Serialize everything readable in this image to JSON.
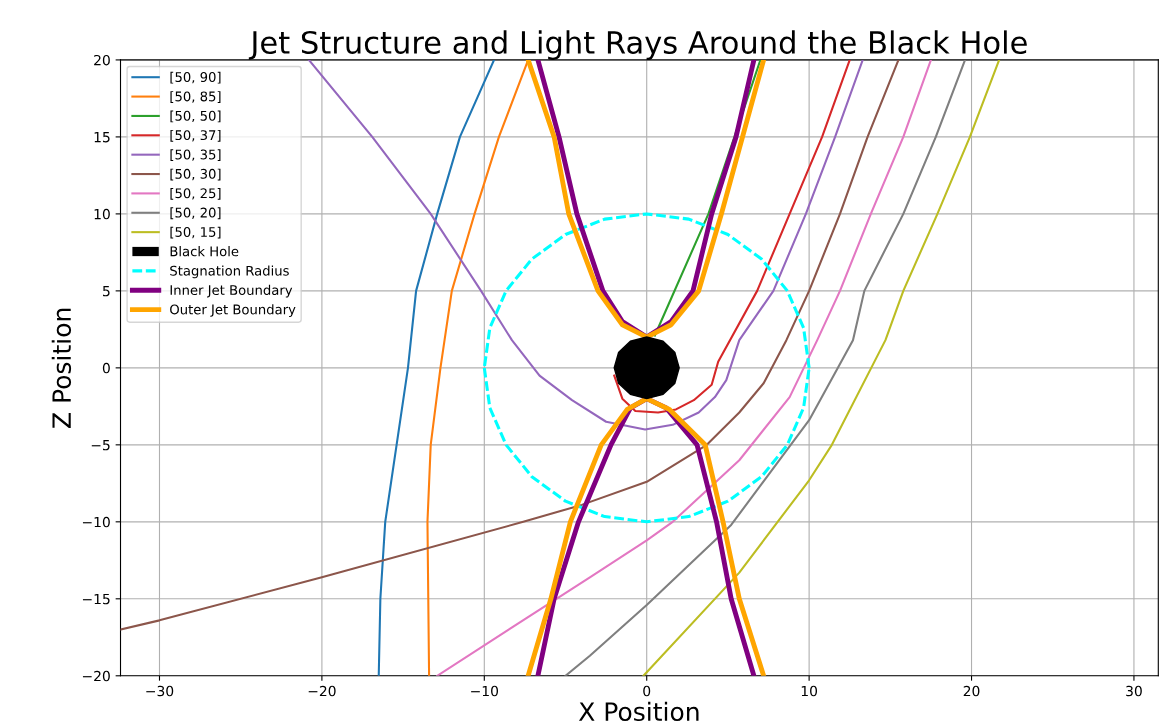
{
  "chart_data": {
    "type": "line",
    "title": "Jet Structure and Light Rays Around the Black Hole",
    "xlabel": "X Position",
    "ylabel": "Z Position",
    "xlim": [
      -32.4,
      31.5
    ],
    "ylim": [
      -20,
      20
    ],
    "xticks": [
      {
        "value": -30,
        "label": "−30"
      },
      {
        "value": -20,
        "label": "−20"
      },
      {
        "value": -10,
        "label": "−10"
      },
      0,
      10,
      20,
      30
    ],
    "yticks": [
      {
        "value": -20,
        "label": "−20"
      },
      {
        "value": -15,
        "label": "−15"
      },
      {
        "value": -10,
        "label": "−10"
      },
      {
        "value": -5,
        "label": "−5"
      },
      0,
      5,
      10,
      15,
      20
    ],
    "grid": true,
    "legend": "top left",
    "series": [
      {
        "name": "[50, 90]",
        "color": "#1f77b4",
        "x": [
          -16.5,
          -16.4,
          -16.1,
          -14.7,
          -14.2,
          -12.9,
          -11.5,
          -9.4
        ],
        "values": [
          -20,
          -15,
          -10,
          0,
          5,
          10,
          15,
          20
        ]
      },
      {
        "name": "[50, 85]",
        "color": "#ff7f0e",
        "x": [
          -13.4,
          -13.5,
          -13.3,
          -12.7,
          -12.0,
          -10.6,
          -9.1,
          -7.3
        ],
        "values": [
          -20,
          -10,
          -5,
          0,
          5,
          10,
          15,
          20
        ]
      },
      {
        "name": "[50, 50]",
        "color": "#2ca02c",
        "x": [
          0.5,
          3.8,
          7.0
        ],
        "values": [
          2.1,
          10,
          20
        ]
      },
      {
        "name": "[50, 37]",
        "color": "#d62728",
        "x": [
          -2.0,
          -1.5,
          -0.7,
          0.7,
          1.8,
          2.9,
          4.0,
          4.4,
          6.8,
          8.8,
          10.8,
          12.5
        ],
        "values": [
          -0.5,
          -2.0,
          -2.8,
          -2.9,
          -2.7,
          -2.1,
          -1.1,
          0.4,
          5,
          10,
          15,
          20
        ]
      },
      {
        "name": "[50, 35]",
        "color": "#9467bd",
        "x": [
          -20.8,
          -16.9,
          -13.3,
          -10.2,
          -8.3,
          -6.6,
          -4.6,
          -2.5,
          -0.1,
          1.6,
          3.2,
          4.2,
          4.9,
          5.7,
          7.8,
          9.8,
          11.6,
          13.3
        ],
        "values": [
          20,
          15,
          10,
          5,
          1.8,
          -0.5,
          -2.1,
          -3.5,
          -4.0,
          -3.7,
          -2.9,
          -1.9,
          -0.8,
          1.8,
          5,
          10,
          15,
          20
        ]
      },
      {
        "name": "[50, 30]",
        "color": "#8c564b",
        "x": [
          -32.4,
          -30,
          -20,
          -7.6,
          -4.0,
          0,
          3.7,
          5.7,
          7.2,
          8.6,
          10.0,
          11.9,
          13.6,
          15.5
        ],
        "values": [
          -17.0,
          -16.4,
          -13.6,
          -10,
          -8.9,
          -7.4,
          -5.0,
          -2.9,
          -1.0,
          1.8,
          5,
          10,
          15,
          20
        ]
      },
      {
        "name": "[50, 25]",
        "color": "#e377c2",
        "x": [
          -12.9,
          -3.5,
          0,
          1.6,
          5.7,
          8.8,
          10.5,
          11.9,
          13.8,
          15.8,
          17.5
        ],
        "values": [
          -20,
          -13.6,
          -11.2,
          -10.0,
          -6.0,
          -1.9,
          1.8,
          5,
          10,
          15,
          20
        ]
      },
      {
        "name": "[50, 20]",
        "color": "#7f7f7f",
        "x": [
          -5.0,
          -3.5,
          0,
          5.2,
          10.0,
          12.7,
          13.4,
          15.8,
          17.8,
          19.6
        ],
        "values": [
          -20,
          -18.7,
          -15.4,
          -10.2,
          -3.4,
          1.8,
          5,
          10,
          15,
          20
        ]
      },
      {
        "name": "[50, 15]",
        "color": "#bcbd22",
        "x": [
          -0.2,
          5.7,
          10.0,
          11.4,
          14.7,
          15.8,
          17.9,
          19.9,
          21.7
        ],
        "values": [
          -20,
          -13.3,
          -7.3,
          -5.0,
          1.8,
          5,
          10,
          15,
          20
        ]
      },
      {
        "name": "Black Hole",
        "type": "area",
        "color": "#000000",
        "x": [
          2,
          1.73,
          1,
          0,
          -1,
          -1.73,
          -2,
          -1.73,
          -1,
          0,
          1,
          1.73,
          2
        ],
        "values": [
          0,
          1,
          1.73,
          2,
          1.73,
          1,
          0,
          -1,
          -1.73,
          -2,
          -1.73,
          -1,
          0
        ]
      },
      {
        "name": "Stagnation Radius",
        "color": "#00ffff",
        "line_style": "dashed",
        "x": [
          10,
          9.66,
          8.66,
          7.07,
          5,
          2.59,
          0,
          -2.59,
          -5,
          -7.07,
          -8.66,
          -9.66,
          -10,
          null,
          -10,
          -9.66,
          -8.66,
          -7.07,
          -5,
          -2.59,
          0,
          2.59,
          5,
          7.07,
          8.66,
          9.66,
          10
        ],
        "values": [
          0,
          2.59,
          5,
          7.07,
          8.66,
          9.66,
          10,
          9.66,
          8.66,
          7.07,
          5,
          2.59,
          0,
          null,
          0,
          -2.59,
          -5,
          -7.07,
          -8.66,
          -9.66,
          -10,
          -9.66,
          -8.66,
          -7.07,
          -5,
          -2.59,
          0
        ]
      },
      {
        "name": "Inner Jet Boundary",
        "color": "#800080",
        "line_style": "solid",
        "x": [
          -6.7,
          -5.4,
          -4.3,
          -2.7,
          -1.5,
          0,
          1.5,
          2.85,
          4.0,
          5.5,
          6.6,
          null,
          -6.7,
          -5.7,
          -4.2,
          -2.2,
          -1.0,
          0,
          1.2,
          3.1,
          4.3,
          5.2,
          6.6
        ],
        "values": [
          20,
          15,
          10,
          5,
          3,
          2,
          3,
          5,
          10,
          15,
          20,
          null,
          -20,
          -15,
          -10,
          -5,
          -2.6,
          -2,
          -2.6,
          -5,
          -10,
          -15,
          -20
        ]
      },
      {
        "name": "Outer Jet Boundary",
        "color": "#ffa500",
        "line_style": "solid",
        "x": [
          -7.3,
          -5.7,
          -4.8,
          -3.0,
          -1.5,
          0,
          1.5,
          3.2,
          4.6,
          5.9,
          7.2,
          null,
          -7.3,
          -5.9,
          -4.7,
          -2.8,
          -1.2,
          0,
          1.4,
          3.6,
          4.7,
          5.7,
          7.2
        ],
        "values": [
          20,
          15,
          10,
          5,
          2.8,
          2,
          2.8,
          5,
          10,
          15,
          20,
          null,
          -20,
          -15,
          -10,
          -5,
          -2.7,
          -2,
          -2.7,
          -5,
          -10,
          -15,
          -20
        ]
      }
    ]
  }
}
